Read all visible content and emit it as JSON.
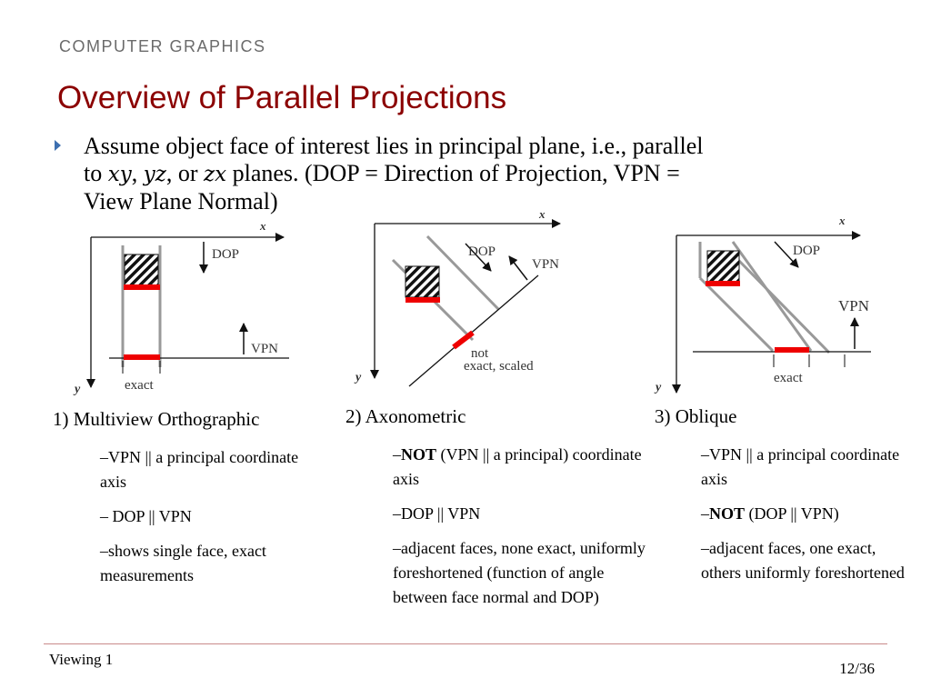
{
  "header": {
    "course": "COMPUTER GRAPHICS",
    "title": "Overview of Parallel Projections"
  },
  "bullet": {
    "line1": "Assume object face of interest lies in principal plane, i.e., parallel",
    "to": "to ",
    "xy": "xy",
    "comma1": ", ",
    "yz": "yz",
    "or": ", or ",
    "zx": "zx",
    "rest": " planes.  (DOP = Direction of Projection, VPN =",
    "line3": "View Plane Normal)"
  },
  "figures": {
    "multiview": {
      "x_label": "x",
      "y_label": "y",
      "dop": "DOP",
      "vpn": "VPN",
      "exact": "exact"
    },
    "axonometric": {
      "x_label": "x",
      "y_label": "y",
      "dop": "DOP",
      "vpn": "VPN",
      "not": "not",
      "exact_scaled": "exact, scaled"
    },
    "oblique": {
      "x_label": "x",
      "y_label": "y",
      "dop": "DOP",
      "vpn": "VPN",
      "exact": "exact"
    }
  },
  "columns": {
    "multiview": {
      "caption": "1) Multiview Orthographic",
      "notes": [
        "–VPN || a principal coordinate axis",
        "– DOP || VPN",
        "–shows single face, exact measurements"
      ]
    },
    "axonometric": {
      "caption": "2) Axonometric",
      "notes": [
        {
          "prefix": "–",
          "bold": "NOT",
          "text": " (VPN || a principal) coordinate axis"
        },
        "–DOP || VPN",
        "–adjacent faces, none exact, uniformly foreshortened (function of angle between face normal and DOP)"
      ]
    },
    "oblique": {
      "caption": "3) Oblique",
      "notes": [
        "–VPN || a principal coordinate axis",
        {
          "prefix": "–",
          "bold": "NOT",
          "text": " (DOP || VPN)"
        },
        "–adjacent faces, one exact, others uniformly foreshortened"
      ]
    }
  },
  "footer": {
    "left": "Viewing 1",
    "page": "12/36"
  },
  "colors": {
    "title": "#8b0000",
    "highlight": "#ee0000",
    "bullet": "#3d6fb0"
  }
}
